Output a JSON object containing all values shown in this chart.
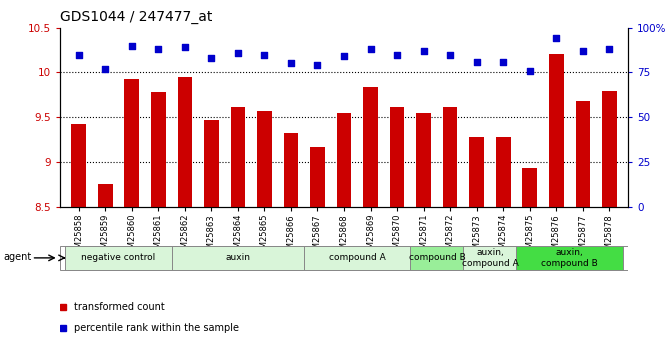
{
  "title": "GDS1044 / 247477_at",
  "samples": [
    "GSM25858",
    "GSM25859",
    "GSM25860",
    "GSM25861",
    "GSM25862",
    "GSM25863",
    "GSM25864",
    "GSM25865",
    "GSM25866",
    "GSM25867",
    "GSM25868",
    "GSM25869",
    "GSM25870",
    "GSM25871",
    "GSM25872",
    "GSM25873",
    "GSM25874",
    "GSM25875",
    "GSM25876",
    "GSM25877",
    "GSM25878"
  ],
  "bar_values": [
    9.42,
    8.76,
    9.93,
    9.78,
    9.95,
    9.47,
    9.62,
    9.57,
    9.32,
    9.17,
    9.55,
    9.84,
    9.61,
    9.55,
    9.61,
    9.28,
    9.28,
    8.93,
    10.21,
    9.68,
    9.79
  ],
  "dot_values": [
    85,
    77,
    90,
    88,
    89,
    83,
    86,
    85,
    80,
    79,
    84,
    88,
    85,
    87,
    85,
    81,
    81,
    76,
    94,
    87,
    88
  ],
  "bar_color": "#cc0000",
  "dot_color": "#0000cc",
  "ylim_left": [
    8.5,
    10.5
  ],
  "ylim_right": [
    0,
    100
  ],
  "yticks_left": [
    8.5,
    9.0,
    9.5,
    10.0,
    10.5
  ],
  "ytick_labels_left": [
    "8.5",
    "9",
    "9.5",
    "10",
    "10.5"
  ],
  "yticks_right": [
    0,
    25,
    50,
    75,
    100
  ],
  "ytick_labels_right": [
    "0",
    "25",
    "50",
    "75",
    "100%"
  ],
  "grid_values": [
    9.0,
    9.5,
    10.0
  ],
  "agent_groups": [
    {
      "label": "negative control",
      "start": 0,
      "end": 4,
      "color": "#d9f5d9"
    },
    {
      "label": "auxin",
      "start": 4,
      "end": 9,
      "color": "#d9f5d9"
    },
    {
      "label": "compound A",
      "start": 9,
      "end": 13,
      "color": "#d9f5d9"
    },
    {
      "label": "compound B",
      "start": 13,
      "end": 15,
      "color": "#99ee99"
    },
    {
      "label": "auxin,\ncompound A",
      "start": 15,
      "end": 17,
      "color": "#d9f5d9"
    },
    {
      "label": "auxin,\ncompound B",
      "start": 17,
      "end": 21,
      "color": "#44dd44"
    }
  ],
  "legend_items": [
    {
      "label": "transformed count",
      "color": "#cc0000"
    },
    {
      "label": "percentile rank within the sample",
      "color": "#0000cc"
    }
  ]
}
